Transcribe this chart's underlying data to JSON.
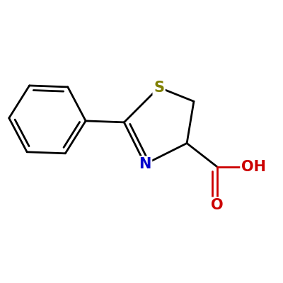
{
  "bg_color": "#ffffff",
  "bond_color": "#000000",
  "S_color": "#808000",
  "N_color": "#0000cc",
  "O_color": "#cc0000",
  "OH_color": "#cc0000",
  "line_width": 2.0,
  "figsize": [
    4.0,
    4.0
  ],
  "dpi": 100,
  "xlim": [
    0.5,
    8.5
  ],
  "ylim": [
    1.0,
    7.5
  ]
}
